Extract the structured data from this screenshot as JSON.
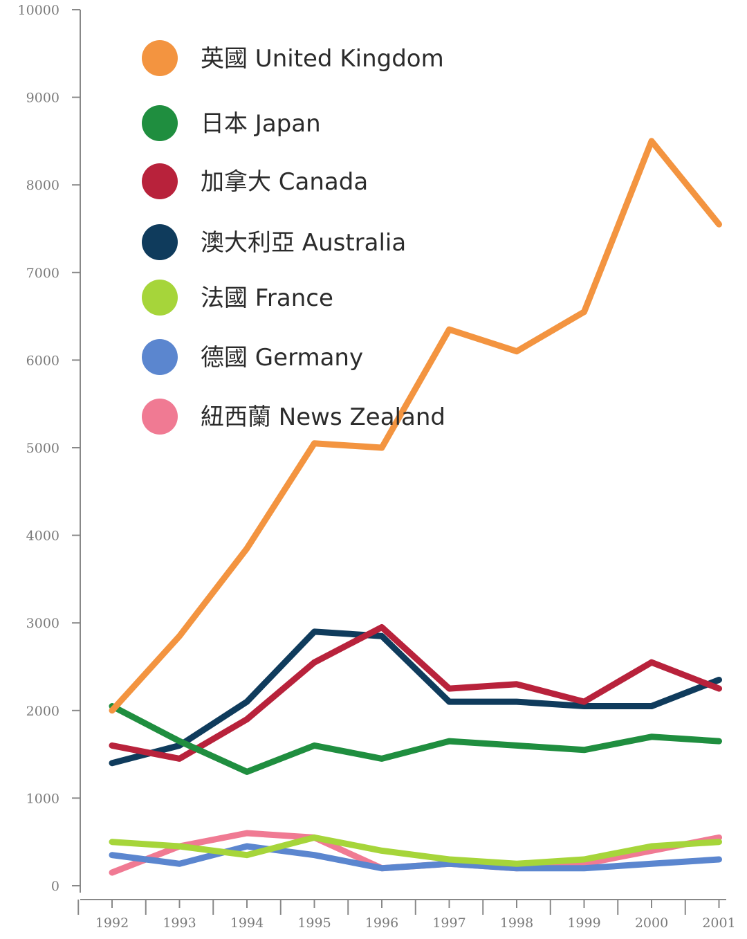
{
  "chart_data": {
    "type": "line",
    "x": [
      "1992",
      "1993",
      "1994",
      "1995",
      "1996",
      "1997",
      "1998",
      "1999",
      "2000",
      "2001"
    ],
    "y_ticks": [
      "0",
      "1000",
      "2000",
      "3000",
      "4000",
      "5000",
      "6000",
      "7000",
      "8000",
      "9000",
      "10000"
    ],
    "ylim": [
      0,
      10000
    ],
    "grid": false,
    "legend_position": "top-left",
    "series": [
      {
        "name": "英國 United Kingdom",
        "color": "#f39440",
        "values": [
          2000,
          2850,
          3850,
          5050,
          5000,
          6350,
          6100,
          6550,
          8500,
          7550
        ]
      },
      {
        "name": "日本 Japan",
        "color": "#1f8e3f",
        "values": [
          2050,
          1650,
          1300,
          1600,
          1450,
          1650,
          1600,
          1550,
          1700,
          1650
        ]
      },
      {
        "name": "加拿大 Canada",
        "color": "#b8223b",
        "values": [
          1600,
          1450,
          1900,
          2550,
          2950,
          2250,
          2300,
          2100,
          2550,
          2250
        ]
      },
      {
        "name": "澳大利亞 Australia",
        "color": "#0f3b5c",
        "values": [
          1400,
          1600,
          2100,
          2900,
          2850,
          2100,
          2100,
          2050,
          2050,
          2350
        ]
      },
      {
        "name": "法國 France",
        "color": "#a6d53a",
        "values": [
          500,
          450,
          350,
          550,
          400,
          300,
          250,
          300,
          450,
          500
        ]
      },
      {
        "name": "德國 Germany",
        "color": "#5b86cf",
        "values": [
          350,
          250,
          450,
          350,
          200,
          250,
          200,
          200,
          250,
          300
        ]
      },
      {
        "name": "紐西蘭 News Zealand",
        "color": "#f07a93",
        "values": [
          150,
          450,
          600,
          550,
          200,
          250,
          200,
          250,
          400,
          550
        ]
      }
    ]
  }
}
